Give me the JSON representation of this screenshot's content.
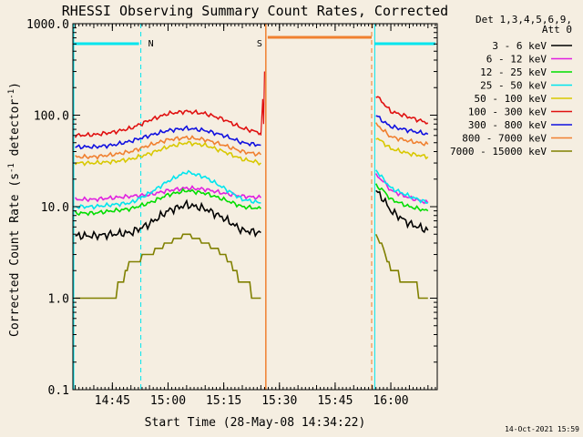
{
  "chart_data": {
    "type": "line",
    "title": "RHESSI Observing Summary Count Rates, Corrected",
    "xlabel": "Start Time (28-May-08 14:34:22)",
    "ylabel_main": "Corrected Count Rate (s",
    "ylabel_sup1": "-1",
    "ylabel_mid": " detector",
    "ylabel_sup2": "-1",
    "ylabel_end": ")",
    "y_scale": "log",
    "ylim": [
      0.1,
      1000
    ],
    "xlim": [
      "14:34:22",
      "16:12:30"
    ],
    "x_ticks": [
      "14:45",
      "15:00",
      "15:15",
      "15:30",
      "15:45",
      "16:00"
    ],
    "y_ticks": [
      "0.1",
      "1.0",
      "10.0",
      "100.0",
      "1000.0"
    ],
    "legend_header": [
      "Det 1,3,4,5,6,9,",
      "Att 0"
    ],
    "legend_position": "right",
    "timestamp": "14-Oct-2021 15:59",
    "markers": [
      {
        "label": "N",
        "start": "14:34:22",
        "end": "14:52:40",
        "color": "#00e5ee",
        "kind": "night"
      },
      {
        "label": "S",
        "start": "15:26:20",
        "end": "15:54:50",
        "color": "#f08030",
        "kind": "saa"
      },
      {
        "label": "",
        "start": "15:55:40",
        "end": "16:12:30",
        "color": "#00e5ee",
        "kind": "night"
      }
    ],
    "gaps": [
      [
        "15:26:20",
        "15:55:40"
      ]
    ],
    "series": [
      {
        "name": "3 - 6 keV",
        "color": "#000000",
        "x": [
          "14:35",
          "14:40",
          "14:45",
          "14:50",
          "14:55",
          "15:00",
          "15:05",
          "15:10",
          "15:15",
          "15:20",
          "15:25",
          "15:56",
          "15:58",
          "16:00",
          "16:05",
          "16:10"
        ],
        "values": [
          4.8,
          4.8,
          5,
          5.2,
          6.5,
          9,
          10.5,
          9.5,
          7.5,
          5.5,
          5.2,
          15,
          12,
          9,
          6.5,
          5.5
        ]
      },
      {
        "name": "6 - 12 keV",
        "color": "#e020e0",
        "x": [
          "14:35",
          "14:40",
          "14:45",
          "14:50",
          "14:55",
          "15:00",
          "15:05",
          "15:10",
          "15:15",
          "15:20",
          "15:25",
          "15:56",
          "15:58",
          "16:00",
          "16:05",
          "16:10"
        ],
        "values": [
          12,
          12,
          12.5,
          13,
          13.5,
          15,
          16,
          15.5,
          14,
          13,
          12.5,
          22,
          19,
          15,
          12.5,
          11
        ]
      },
      {
        "name": "12 - 25 keV",
        "color": "#00dd00",
        "x": [
          "14:35",
          "14:40",
          "14:45",
          "14:50",
          "14:55",
          "15:00",
          "15:05",
          "15:10",
          "15:15",
          "15:20",
          "15:25",
          "15:56",
          "15:58",
          "16:00",
          "16:05",
          "16:10"
        ],
        "values": [
          8.5,
          8.5,
          9,
          9.5,
          11,
          13.5,
          15,
          14,
          12,
          10,
          9.5,
          17,
          15,
          12,
          10,
          9
        ]
      },
      {
        "name": "25 - 50 keV",
        "color": "#00e5ee",
        "x": [
          "14:35",
          "14:40",
          "14:45",
          "14:50",
          "14:55",
          "15:00",
          "15:05",
          "15:10",
          "15:15",
          "15:20",
          "15:25",
          "15:56",
          "15:58",
          "16:00",
          "16:05",
          "16:10"
        ],
        "values": [
          10,
          10,
          10.5,
          11,
          14,
          19,
          24,
          21,
          16,
          12,
          11,
          25,
          20,
          16,
          13,
          11
        ]
      },
      {
        "name": "50 - 100 keV",
        "color": "#d8c800",
        "x": [
          "14:35",
          "14:40",
          "14:45",
          "14:50",
          "14:55",
          "15:00",
          "15:05",
          "15:10",
          "15:15",
          "15:20",
          "15:25",
          "15:56",
          "15:58",
          "16:00",
          "16:05",
          "16:10"
        ],
        "values": [
          30,
          30,
          31,
          33,
          38,
          45,
          50,
          47,
          40,
          33,
          30,
          57,
          50,
          43,
          38,
          35
        ]
      },
      {
        "name": "100 - 300 keV",
        "color": "#e01010",
        "x": [
          "14:35",
          "14:40",
          "14:45",
          "14:50",
          "14:55",
          "15:00",
          "15:05",
          "15:10",
          "15:15",
          "15:20",
          "15:25",
          "15:56",
          "15:58",
          "16:00",
          "16:05",
          "16:10"
        ],
        "values": [
          60,
          61,
          65,
          72,
          88,
          104,
          110,
          104,
          90,
          72,
          64,
          165,
          135,
          110,
          95,
          82
        ]
      },
      {
        "name": "300 - 800 keV",
        "color": "#1010e0",
        "x": [
          "14:35",
          "14:40",
          "14:45",
          "14:50",
          "14:55",
          "15:00",
          "15:05",
          "15:10",
          "15:15",
          "15:20",
          "15:25",
          "15:56",
          "15:58",
          "16:00",
          "16:05",
          "16:10"
        ],
        "values": [
          45,
          45,
          47,
          52,
          60,
          68,
          72,
          68,
          60,
          50,
          47,
          100,
          85,
          75,
          68,
          62
        ]
      },
      {
        "name": "800 - 7000 keV",
        "color": "#f08030",
        "x": [
          "14:35",
          "14:40",
          "14:45",
          "14:50",
          "14:55",
          "15:00",
          "15:05",
          "15:10",
          "15:15",
          "15:20",
          "15:25",
          "15:56",
          "15:58",
          "16:00",
          "16:05",
          "16:10"
        ],
        "values": [
          35,
          35,
          37,
          40,
          47,
          54,
          57,
          54,
          47,
          40,
          37,
          80,
          68,
          58,
          52,
          48
        ]
      },
      {
        "name": "7000 - 15000 keV",
        "color": "#808000",
        "x": [
          "14:35",
          "14:40",
          "14:45",
          "14:50",
          "14:55",
          "15:00",
          "15:05",
          "15:10",
          "15:15",
          "15:20",
          "15:25",
          "15:56",
          "15:58",
          "16:00",
          "16:05",
          "16:10"
        ],
        "values": [
          1,
          1,
          1,
          2.5,
          3,
          4,
          5,
          4,
          3,
          1.5,
          1,
          5,
          3.5,
          2,
          1.5,
          1
        ]
      }
    ]
  }
}
